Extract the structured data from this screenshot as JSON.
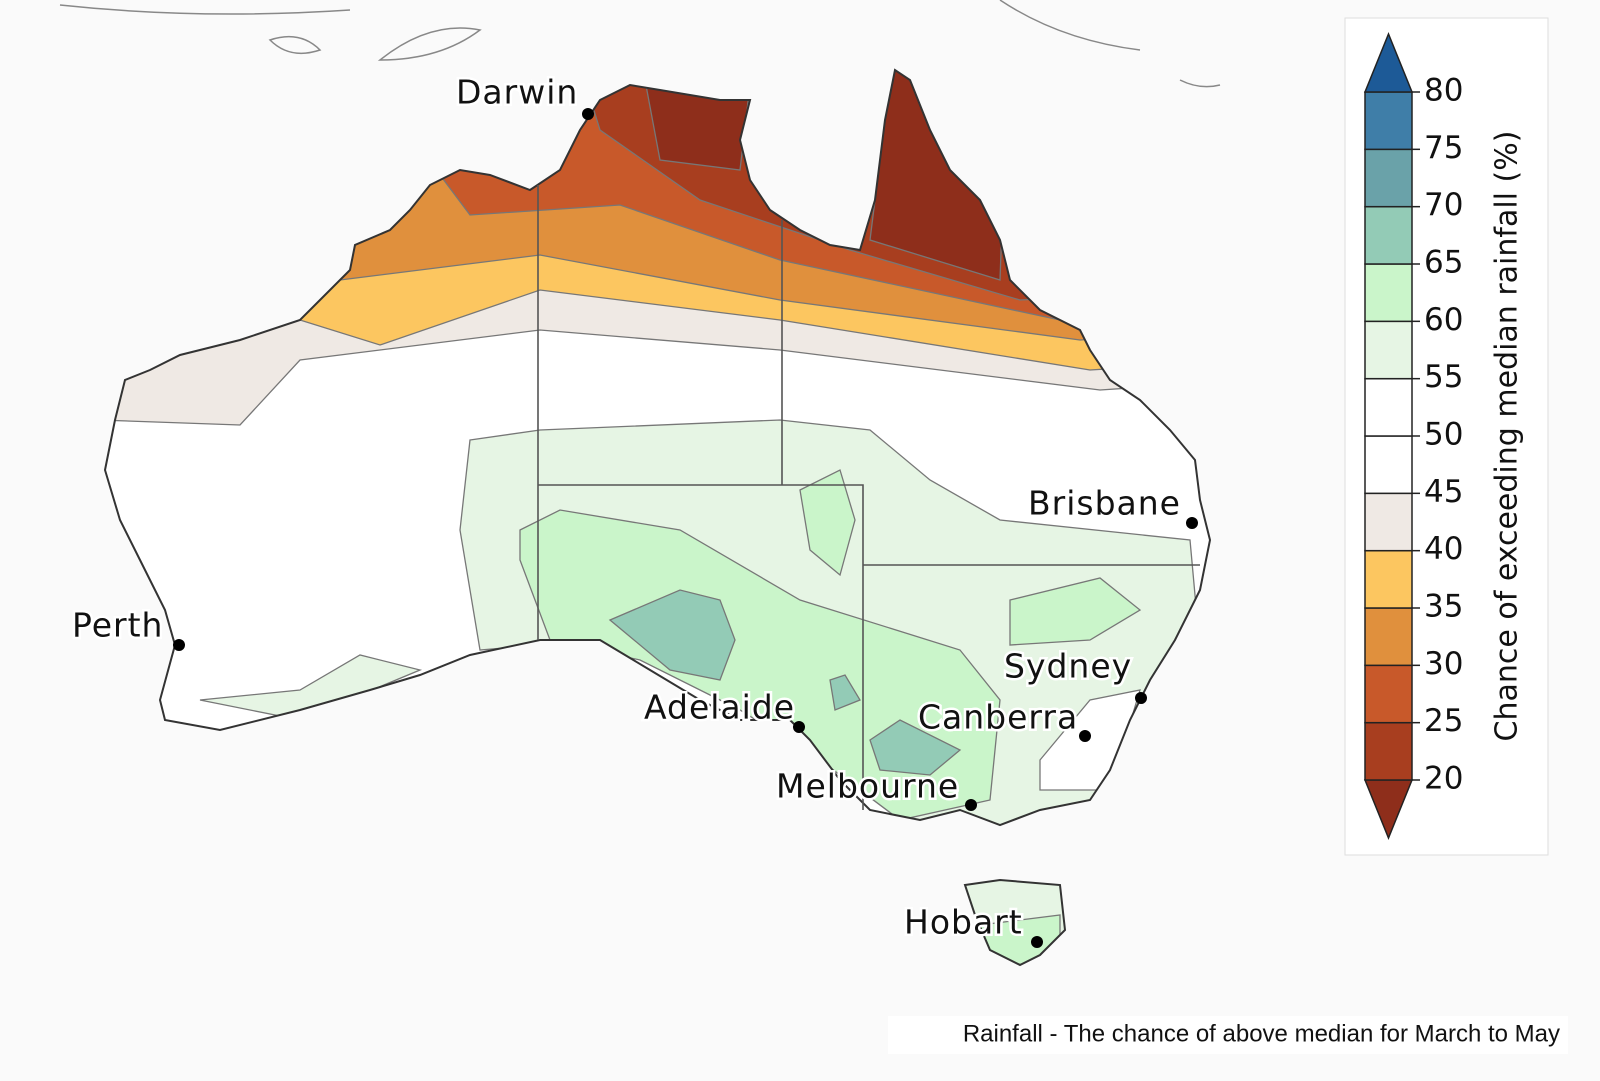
{
  "map": {
    "cities": [
      "Darwin",
      "Brisbane",
      "Perth",
      "Sydney",
      "Adelaide",
      "Canberra",
      "Melbourne",
      "Hobart"
    ],
    "legend": {
      "title": "Chance of exceeding median rainfall (%)",
      "ticks": [
        20,
        25,
        30,
        35,
        40,
        45,
        50,
        55,
        60,
        65,
        70,
        75,
        80
      ],
      "colors": [
        "#8e2e1b",
        "#a83e1f",
        "#c8592a",
        "#e0903d",
        "#fcc660",
        "#efe9e4",
        "#ffffff",
        "#ffffff",
        "#e6f5e4",
        "#caf5ca",
        "#93cbb6",
        "#6aa2a9",
        "#3f7ea8",
        "#1d5a97"
      ]
    },
    "caption": "Rainfall - The chance of above median for March to May"
  }
}
